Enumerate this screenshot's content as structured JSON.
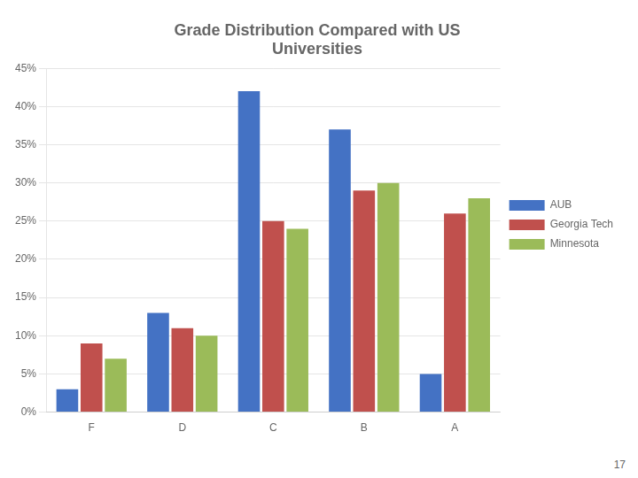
{
  "chart_data": {
    "type": "bar",
    "title": [
      "Grade Distribution Compared with US",
      "Universities"
    ],
    "categories": [
      "F",
      "D",
      "C",
      "B",
      "A"
    ],
    "series": [
      {
        "name": "AUB",
        "color": "#4472C4",
        "values": [
          3,
          13,
          42,
          37,
          5
        ]
      },
      {
        "name": "Georgia Tech",
        "color": "#C0504D",
        "values": [
          9,
          11,
          25,
          29,
          26
        ]
      },
      {
        "name": "Minnesota",
        "color": "#9BBB59",
        "values": [
          7,
          10,
          24,
          30,
          28
        ]
      }
    ],
    "ylim": [
      0,
      45
    ],
    "yticks": [
      {
        "value": 0,
        "label": "0%"
      },
      {
        "value": 5,
        "label": "5%"
      },
      {
        "value": 10,
        "label": "10%"
      },
      {
        "value": 15,
        "label": "15%"
      },
      {
        "value": 20,
        "label": "20%"
      },
      {
        "value": 25,
        "label": "25%"
      },
      {
        "value": 30,
        "label": "30%"
      },
      {
        "value": 35,
        "label": "35%"
      },
      {
        "value": 40,
        "label": "40%"
      },
      {
        "value": 45,
        "label": "45%"
      }
    ],
    "grid": true,
    "legend": "right",
    "annotations": [
      "17"
    ]
  }
}
